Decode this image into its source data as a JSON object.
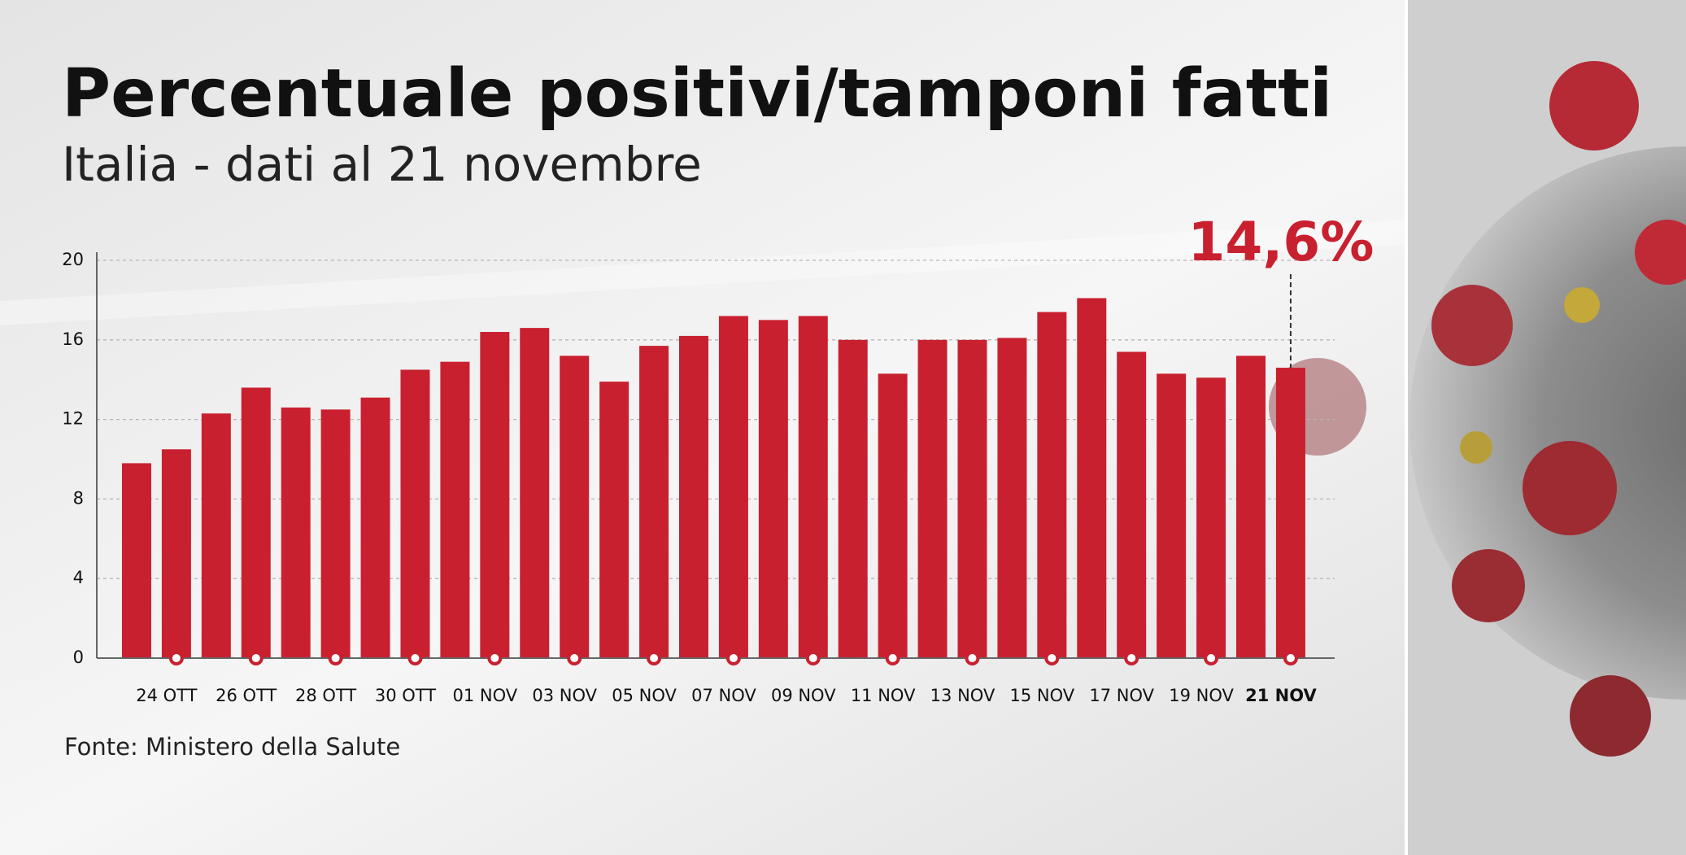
{
  "chart_data": {
    "type": "bar",
    "title": "Percentuale positivi/tamponi fatti",
    "subtitle": "Italia - dati al 21 novembre",
    "source": "Fonte: Ministero della Salute",
    "categories": [
      null,
      "24 OTT",
      null,
      "26 OTT",
      null,
      "28 OTT",
      null,
      "30 OTT",
      null,
      "01 NOV",
      null,
      "03 NOV",
      null,
      "05 NOV",
      null,
      "07 NOV",
      null,
      "09 NOV",
      null,
      "11 NOV",
      null,
      "13 NOV",
      null,
      "15 NOV",
      null,
      "17 NOV",
      null,
      "19 NOV",
      null,
      "21 NOV"
    ],
    "values": [
      9.8,
      10.5,
      12.3,
      13.6,
      12.6,
      12.5,
      13.1,
      14.5,
      14.9,
      16.4,
      16.6,
      15.2,
      13.9,
      15.7,
      16.2,
      17.2,
      17.0,
      17.2,
      16.0,
      14.3,
      16.0,
      16.0,
      16.1,
      17.4,
      18.1,
      15.4,
      14.3,
      14.1,
      15.2,
      14.6
    ],
    "value_labels": [
      null,
      null,
      null,
      null,
      null,
      null,
      null,
      null,
      null,
      null,
      null,
      null,
      null,
      null,
      null,
      null,
      null,
      null,
      null,
      null,
      null,
      null,
      null,
      null,
      null,
      null,
      null,
      null,
      null,
      "14,6%"
    ],
    "color": "#c9202f",
    "ylim": [
      0,
      20
    ],
    "yticks": [
      0,
      4,
      8,
      12,
      16,
      20
    ],
    "grid": true
  }
}
